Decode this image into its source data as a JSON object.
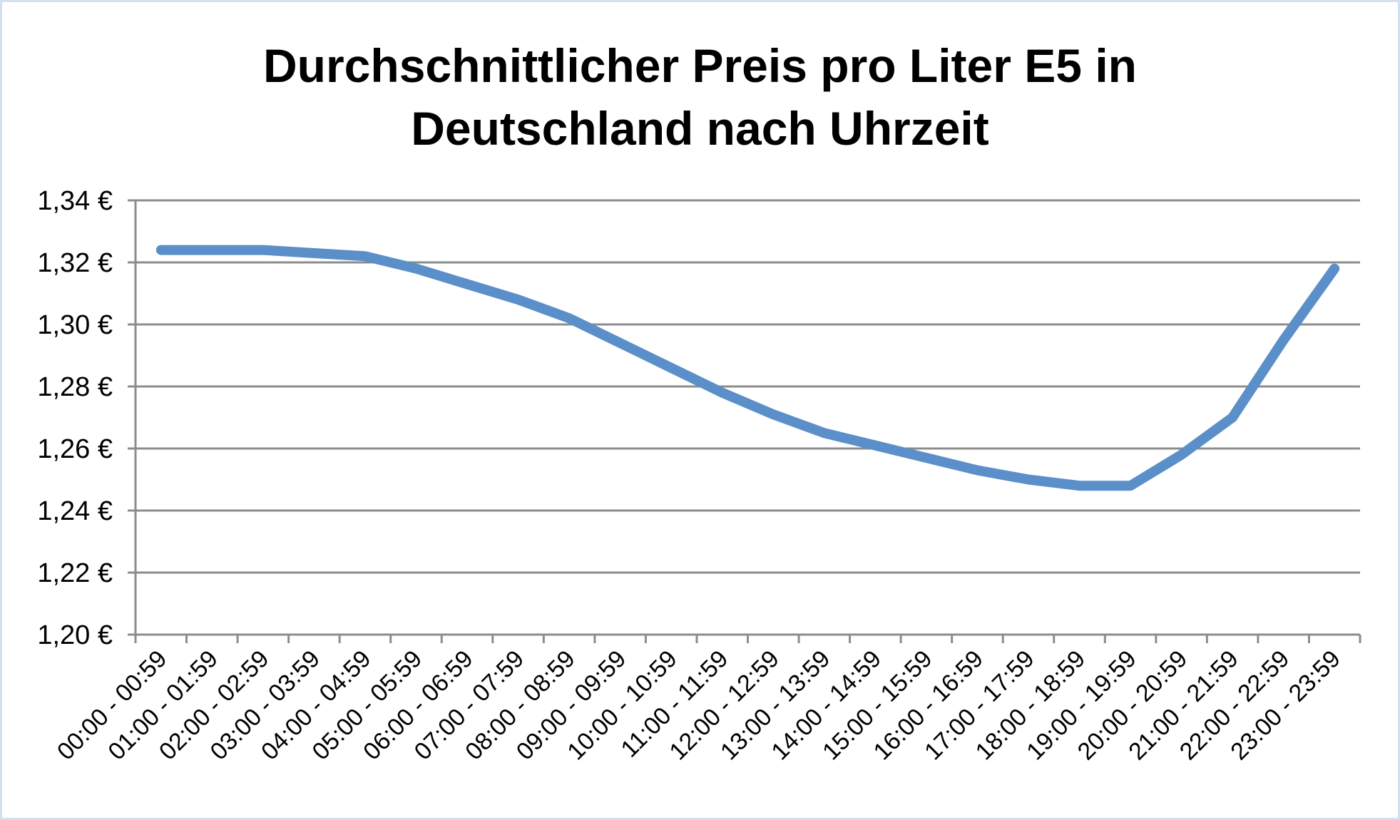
{
  "chart_data": {
    "type": "line",
    "title_line1": "Durchschnittlicher Preis pro Liter E5 in",
    "title_line2": "Deutschland nach Uhrzeit",
    "categories": [
      "00:00 - 00:59",
      "01:00 - 01:59",
      "02:00 - 02:59",
      "03:00 - 03:59",
      "04:00 - 04:59",
      "05:00 - 05:59",
      "06:00 - 06:59",
      "07:00 - 07:59",
      "08:00 - 08:59",
      "09:00 - 09:59",
      "10:00 - 10:59",
      "11:00 - 11:59",
      "12:00 - 12:59",
      "13:00 - 13:59",
      "14:00 - 14:59",
      "15:00 - 15:59",
      "16:00 - 16:59",
      "17:00 - 17:59",
      "18:00 - 18:59",
      "19:00 - 19:59",
      "20:00 - 20:59",
      "21:00 - 21:59",
      "22:00 - 22:59",
      "23:00 - 23:59"
    ],
    "series": [
      {
        "values": [
          1.324,
          1.324,
          1.324,
          1.323,
          1.322,
          1.318,
          1.313,
          1.308,
          1.302,
          1.294,
          1.286,
          1.278,
          1.271,
          1.265,
          1.261,
          1.257,
          1.253,
          1.25,
          1.248,
          1.248,
          1.258,
          1.27,
          1.295,
          1.318
        ],
        "color": "#5b8fc9"
      }
    ],
    "ylim": [
      1.2,
      1.34
    ],
    "yticks": [
      1.2,
      1.22,
      1.24,
      1.26,
      1.28,
      1.3,
      1.32,
      1.34
    ],
    "ytick_labels": [
      "1,20 €",
      "1,22 €",
      "1,24 €",
      "1,26 €",
      "1,28 €",
      "1,30 €",
      "1,32 €",
      "1,34 €"
    ],
    "grid": true,
    "legend": "none"
  }
}
